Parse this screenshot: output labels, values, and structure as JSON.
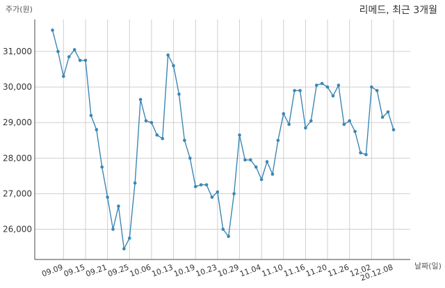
{
  "chart_data": {
    "type": "line",
    "title": "리메드, 최근 3개월",
    "ylabel": "주가(원)",
    "xlabel": "날짜(일)",
    "ylim": [
      25150,
      31900
    ],
    "yticks": [
      26000,
      27000,
      28000,
      29000,
      30000,
      31000
    ],
    "ytick_labels": [
      "26,000",
      "27,000",
      "28,000",
      "29,000",
      "30,000",
      "31,000"
    ],
    "xticks": [
      {
        "index": 2,
        "label": "09.09"
      },
      {
        "index": 6,
        "label": "09.15"
      },
      {
        "index": 10,
        "label": "09.21"
      },
      {
        "index": 14,
        "label": "09.25"
      },
      {
        "index": 18,
        "label": "10.06"
      },
      {
        "index": 22,
        "label": "10.13"
      },
      {
        "index": 26,
        "label": "10.19"
      },
      {
        "index": 30,
        "label": "10.23"
      },
      {
        "index": 34,
        "label": "10.29"
      },
      {
        "index": 38,
        "label": "11.04"
      },
      {
        "index": 42,
        "label": "11.10"
      },
      {
        "index": 46,
        "label": "11.16"
      },
      {
        "index": 50,
        "label": "11.20"
      },
      {
        "index": 54,
        "label": "11.26"
      },
      {
        "index": 58,
        "label": "12.02"
      },
      {
        "index": 62,
        "label": "20.12.08"
      }
    ],
    "grid": true,
    "line_color": "#3a86b4",
    "series": [
      {
        "values": [
          31600,
          31000,
          30300,
          30850,
          31050,
          30750,
          30750,
          29200,
          28800,
          27750,
          26900,
          26000,
          26650,
          25450,
          25750,
          27300,
          29650,
          29050,
          29000,
          28650,
          28550,
          30900,
          30600,
          29800,
          28500,
          28000,
          27200,
          27250,
          27250,
          26900,
          27050,
          26000,
          25800,
          27000,
          28650,
          27950,
          27950,
          27750,
          27400,
          27900,
          27550,
          28500,
          29250,
          28950,
          29900,
          29900,
          28850,
          29050,
          30050,
          30100,
          30000,
          29750,
          30050,
          28950,
          29050,
          28750,
          28150,
          28100,
          30000,
          29900,
          29150,
          29300,
          28800
        ]
      }
    ]
  }
}
